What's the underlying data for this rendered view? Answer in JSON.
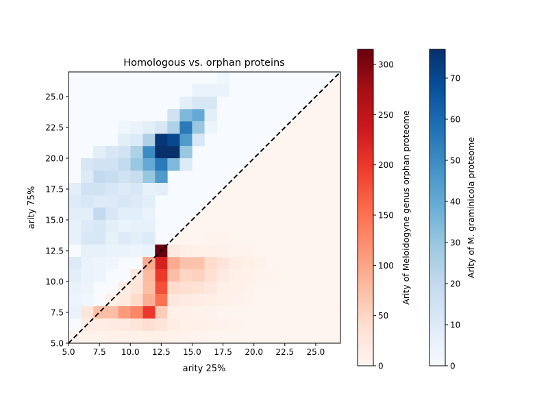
{
  "chart_data": {
    "type": "heatmap",
    "title": "Homologous vs. orphan proteins",
    "xlabel": "arity 25%",
    "ylabel": "arity 75%",
    "xlim": [
      5.0,
      27.0
    ],
    "ylim": [
      5.0,
      27.0
    ],
    "bin_width": 1.0,
    "x_ticks": [
      "5.0",
      "7.5",
      "10.0",
      "12.5",
      "15.0",
      "17.5",
      "20.0",
      "22.5",
      "25.0"
    ],
    "y_ticks": [
      "5.0",
      "7.5",
      "10.0",
      "12.5",
      "15.0",
      "17.5",
      "20.0",
      "22.5",
      "25.0"
    ],
    "x_tick_values": [
      5.0,
      7.5,
      10.0,
      12.5,
      15.0,
      17.5,
      20.0,
      22.5,
      25.0
    ],
    "y_tick_values": [
      5.0,
      7.5,
      10.0,
      12.5,
      15.0,
      17.5,
      20.0,
      22.5,
      25.0
    ],
    "diagonal": {
      "style": "dashed",
      "color": "#000000",
      "from": [
        5,
        5
      ],
      "to": [
        27,
        27
      ]
    },
    "series": [
      {
        "name": "Arity of Meloidogyne genus orphan proteome",
        "cmap": "Reds",
        "region": "lower",
        "vmin": 0,
        "vmax": 315,
        "colorbar_ticks": [
          0,
          50,
          100,
          150,
          200,
          250,
          300
        ],
        "cells": [
          [
            12,
            12,
            315
          ],
          [
            12,
            11,
            225
          ],
          [
            12,
            10,
            200
          ],
          [
            12,
            9,
            180
          ],
          [
            12,
            8,
            150
          ],
          [
            12,
            7,
            60
          ],
          [
            13,
            11,
            95
          ],
          [
            13,
            10,
            75
          ],
          [
            13,
            9,
            45
          ],
          [
            13,
            8,
            25
          ],
          [
            13,
            7,
            10
          ],
          [
            14,
            11,
            70
          ],
          [
            14,
            10,
            50
          ],
          [
            14,
            9,
            40
          ],
          [
            14,
            8,
            20
          ],
          [
            14,
            7,
            8
          ],
          [
            15,
            11,
            70
          ],
          [
            15,
            10,
            55
          ],
          [
            15,
            9,
            35
          ],
          [
            15,
            8,
            15
          ],
          [
            15,
            7,
            6
          ],
          [
            16,
            11,
            45
          ],
          [
            16,
            10,
            40
          ],
          [
            16,
            9,
            25
          ],
          [
            16,
            8,
            12
          ],
          [
            16,
            7,
            5
          ],
          [
            17,
            11,
            30
          ],
          [
            17,
            10,
            20
          ],
          [
            17,
            9,
            12
          ],
          [
            17,
            8,
            8
          ],
          [
            18,
            11,
            15
          ],
          [
            18,
            10,
            12
          ],
          [
            18,
            9,
            8
          ],
          [
            18,
            8,
            5
          ],
          [
            19,
            11,
            12
          ],
          [
            19,
            10,
            8
          ],
          [
            19,
            9,
            6
          ],
          [
            19,
            8,
            4
          ],
          [
            20,
            11,
            6
          ],
          [
            20,
            10,
            4
          ],
          [
            21,
            10,
            3
          ],
          [
            13,
            12,
            20
          ],
          [
            14,
            12,
            12
          ],
          [
            15,
            12,
            10
          ],
          [
            16,
            12,
            8
          ],
          [
            17,
            12,
            5
          ],
          [
            18,
            12,
            4
          ],
          [
            19,
            12,
            3
          ],
          [
            16,
            13,
            4
          ],
          [
            17,
            13,
            3
          ],
          [
            11,
            11,
            95
          ],
          [
            11,
            10,
            80
          ],
          [
            11,
            9,
            75
          ],
          [
            11,
            8,
            90
          ],
          [
            11,
            7,
            200
          ],
          [
            10,
            10,
            25
          ],
          [
            10,
            9,
            30
          ],
          [
            10,
            8,
            45
          ],
          [
            10,
            7,
            130
          ],
          [
            9,
            9,
            15
          ],
          [
            9,
            8,
            20
          ],
          [
            9,
            7,
            110
          ],
          [
            8,
            8,
            10
          ],
          [
            8,
            7,
            75
          ],
          [
            7,
            7,
            75
          ],
          [
            6,
            7,
            30
          ],
          [
            12,
            6,
            30
          ],
          [
            13,
            6,
            15
          ],
          [
            14,
            6,
            10
          ],
          [
            15,
            6,
            8
          ],
          [
            16,
            6,
            6
          ],
          [
            17,
            6,
            5
          ],
          [
            18,
            6,
            4
          ],
          [
            11,
            6,
            40
          ],
          [
            10,
            6,
            30
          ],
          [
            9,
            6,
            20
          ],
          [
            8,
            6,
            18
          ],
          [
            7,
            6,
            15
          ],
          [
            6,
            6,
            15
          ],
          [
            12,
            5,
            10
          ],
          [
            11,
            5,
            12
          ],
          [
            10,
            5,
            10
          ],
          [
            9,
            5,
            8
          ],
          [
            8,
            5,
            8
          ],
          [
            7,
            5,
            6
          ],
          [
            6,
            5,
            6
          ],
          [
            5,
            5,
            4
          ],
          [
            13,
            5,
            6
          ],
          [
            14,
            5,
            5
          ],
          [
            15,
            5,
            4
          ]
        ]
      },
      {
        "name": "Arity of M. graminicola proteome",
        "cmap": "Blues",
        "region": "upper",
        "vmin": 0,
        "vmax": 77,
        "colorbar_ticks": [
          0,
          10,
          20,
          30,
          40,
          50,
          60,
          70
        ],
        "cells": [
          [
            11,
            20,
            50
          ],
          [
            11,
            19,
            40
          ],
          [
            11,
            18,
            30
          ],
          [
            11,
            21,
            25
          ],
          [
            11,
            22,
            8
          ],
          [
            12,
            21,
            75
          ],
          [
            12,
            20,
            77
          ],
          [
            12,
            19,
            55
          ],
          [
            12,
            18,
            45
          ],
          [
            12,
            22,
            12
          ],
          [
            12,
            17,
            8
          ],
          [
            13,
            20,
            77
          ],
          [
            13,
            21,
            70
          ],
          [
            13,
            19,
            35
          ],
          [
            13,
            22,
            25
          ],
          [
            13,
            23,
            15
          ],
          [
            14,
            21,
            45
          ],
          [
            14,
            22,
            55
          ],
          [
            14,
            20,
            30
          ],
          [
            14,
            23,
            35
          ],
          [
            14,
            24,
            8
          ],
          [
            14,
            19,
            10
          ],
          [
            15,
            23,
            40
          ],
          [
            15,
            22,
            30
          ],
          [
            15,
            24,
            12
          ],
          [
            15,
            21,
            12
          ],
          [
            15,
            25,
            5
          ],
          [
            16,
            24,
            12
          ],
          [
            16,
            23,
            8
          ],
          [
            16,
            25,
            5
          ],
          [
            16,
            22,
            4
          ],
          [
            17,
            25,
            5
          ],
          [
            17,
            26,
            3
          ],
          [
            10,
            21,
            10
          ],
          [
            10,
            20,
            25
          ],
          [
            10,
            19,
            30
          ],
          [
            10,
            18,
            18
          ],
          [
            10,
            17,
            12
          ],
          [
            10,
            16,
            10
          ],
          [
            10,
            15,
            8
          ],
          [
            10,
            22,
            5
          ],
          [
            9,
            20,
            15
          ],
          [
            9,
            19,
            20
          ],
          [
            9,
            18,
            15
          ],
          [
            9,
            17,
            10
          ],
          [
            9,
            16,
            12
          ],
          [
            9,
            15,
            8
          ],
          [
            9,
            21,
            8
          ],
          [
            9,
            22,
            3
          ],
          [
            8,
            20,
            12
          ],
          [
            8,
            19,
            15
          ],
          [
            8,
            18,
            18
          ],
          [
            8,
            17,
            12
          ],
          [
            8,
            16,
            10
          ],
          [
            8,
            15,
            12
          ],
          [
            8,
            14,
            8
          ],
          [
            8,
            13,
            6
          ],
          [
            7,
            19,
            15
          ],
          [
            7,
            18,
            20
          ],
          [
            7,
            17,
            15
          ],
          [
            7,
            16,
            10
          ],
          [
            7,
            15,
            20
          ],
          [
            7,
            14,
            12
          ],
          [
            7,
            13,
            12
          ],
          [
            7,
            12,
            6
          ],
          [
            7,
            20,
            8
          ],
          [
            6,
            19,
            12
          ],
          [
            6,
            18,
            10
          ],
          [
            6,
            17,
            15
          ],
          [
            6,
            16,
            12
          ],
          [
            6,
            15,
            8
          ],
          [
            6,
            14,
            10
          ],
          [
            6,
            13,
            12
          ],
          [
            6,
            12,
            6
          ],
          [
            6,
            11,
            5
          ],
          [
            5,
            17,
            8
          ],
          [
            5,
            16,
            10
          ],
          [
            5,
            15,
            8
          ],
          [
            5,
            14,
            6
          ],
          [
            5,
            13,
            6
          ],
          [
            5,
            11,
            10
          ],
          [
            5,
            10,
            8
          ],
          [
            5,
            9,
            5
          ],
          [
            5,
            8,
            4
          ],
          [
            5,
            7,
            5
          ],
          [
            10,
            14,
            6
          ],
          [
            10,
            13,
            8
          ],
          [
            11,
            14,
            6
          ],
          [
            11,
            13,
            10
          ],
          [
            11,
            16,
            8
          ],
          [
            11,
            17,
            6
          ],
          [
            11,
            15,
            5
          ],
          [
            11,
            12,
            5
          ],
          [
            9,
            14,
            5
          ],
          [
            9,
            13,
            10
          ],
          [
            9,
            12,
            5
          ],
          [
            8,
            12,
            5
          ],
          [
            10,
            12,
            4
          ],
          [
            6,
            10,
            5
          ],
          [
            6,
            9,
            4
          ],
          [
            6,
            8,
            3
          ],
          [
            7,
            11,
            4
          ],
          [
            7,
            10,
            4
          ],
          [
            8,
            11,
            3
          ]
        ]
      }
    ]
  }
}
